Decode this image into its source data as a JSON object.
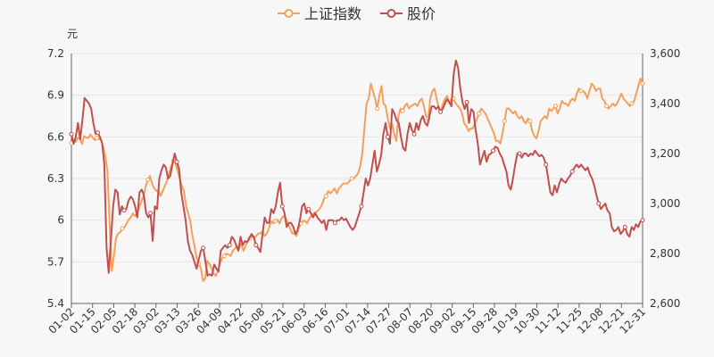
{
  "chart_data": {
    "type": "line",
    "title": "",
    "left_axis": {
      "unit": "元",
      "min": 5.4,
      "max": 7.2,
      "ticks": [
        "5.4",
        "5.7",
        "6",
        "6.3",
        "6.6",
        "6.9",
        "7.2"
      ],
      "tick_values": [
        5.4,
        5.7,
        6.0,
        6.3,
        6.6,
        6.9,
        7.2
      ]
    },
    "right_axis": {
      "min": 2600,
      "max": 3600,
      "ticks": [
        "2,600",
        "2,800",
        "3,000",
        "3,200",
        "3,400",
        "3,600"
      ],
      "tick_values": [
        2600,
        2800,
        3000,
        3200,
        3400,
        3600
      ]
    },
    "x_tick_labels": [
      "01-02",
      "01-15",
      "02-05",
      "02-18",
      "03-02",
      "03-13",
      "03-26",
      "04-09",
      "04-22",
      "05-08",
      "05-21",
      "06-03",
      "06-16",
      "07-01",
      "07-14",
      "07-27",
      "08-07",
      "08-20",
      "09-02",
      "09-15",
      "09-28",
      "10-19",
      "10-30",
      "11-12",
      "11-25",
      "12-08",
      "12-21",
      "12-31"
    ],
    "grid": true,
    "legend_position": "top-center",
    "colors": {
      "index": "#f3a15a",
      "price": "#c0504d",
      "axis": "#666666",
      "grid": "#e6e6e6"
    },
    "series": [
      {
        "name": "上证指数",
        "axis": "right",
        "values": [
          3242,
          3255,
          3247,
          3262,
          3262,
          3238,
          3270,
          3264,
          3262,
          3276,
          3264,
          3254,
          3262,
          3258,
          3255,
          3225,
          3188,
          3130,
          2920,
          2730,
          2790,
          2862,
          2880,
          2885,
          2900,
          2905,
          2920,
          2935,
          2945,
          2960,
          2950,
          2960,
          2985,
          3010,
          3030,
          3070,
          3095,
          3110,
          3080,
          3060,
          3050,
          3050,
          3030,
          3050,
          3070,
          3090,
          3120,
          3150,
          3170,
          3160,
          3130,
          3100,
          3070,
          3050,
          2990,
          2960,
          2930,
          2870,
          2830,
          2780,
          2760,
          2740,
          2690,
          2700,
          2770,
          2760,
          2740,
          2720,
          2710,
          2730,
          2760,
          2780,
          2790,
          2800,
          2795,
          2790,
          2810,
          2820,
          2830,
          2820,
          2840,
          2810,
          2830,
          2850,
          2860,
          2870,
          2860,
          2870,
          2880,
          2880,
          2890,
          2870,
          2880,
          2900,
          2930,
          2920,
          2930,
          2935,
          2920,
          2940,
          2950,
          2940,
          2920,
          2900,
          2880,
          2880,
          2870,
          2900,
          2920,
          2930,
          2930,
          2920,
          2940,
          2950,
          2960,
          2965,
          2970,
          2980,
          2995,
          3020,
          3030,
          3050,
          3040,
          3050,
          3060,
          3040,
          3060,
          3070,
          3080,
          3080,
          3080,
          3090,
          3100,
          3100,
          3110,
          3120,
          3150,
          3200,
          3300,
          3400,
          3420,
          3480,
          3450,
          3420,
          3380,
          3430,
          3470,
          3400,
          3390,
          3340,
          3300,
          3320,
          3280,
          3250,
          3350,
          3380,
          3370,
          3390,
          3400,
          3380,
          3390,
          3395,
          3400,
          3390,
          3410,
          3420,
          3390,
          3350,
          3340,
          3420,
          3450,
          3460,
          3420,
          3380,
          3370,
          3400,
          3420,
          3430,
          3400,
          3420,
          3420,
          3400,
          3390,
          3380,
          3360,
          3320,
          3310,
          3290,
          3300,
          3300,
          3320,
          3340,
          3360,
          3380,
          3370,
          3360,
          3340,
          3320,
          3300,
          3280,
          3250,
          3250,
          3240,
          3280,
          3330,
          3380,
          3380,
          3370,
          3360,
          3370,
          3350,
          3340,
          3350,
          3330,
          3320,
          3340,
          3330,
          3290,
          3270,
          3260,
          3290,
          3330,
          3340,
          3350,
          3340,
          3380,
          3370,
          3380,
          3390,
          3360,
          3380,
          3410,
          3400,
          3400,
          3390,
          3410,
          3420,
          3410,
          3440,
          3460,
          3450,
          3450,
          3440,
          3420,
          3450,
          3480,
          3470,
          3450,
          3460,
          3460,
          3420,
          3410,
          3390,
          3380,
          3390,
          3400,
          3390,
          3400,
          3420,
          3440,
          3420,
          3410,
          3400,
          3390,
          3400,
          3410,
          3440,
          3470,
          3500,
          3480
        ]
      },
      {
        "name": "股价",
        "axis": "left",
        "values": [
          6.62,
          6.55,
          6.6,
          6.7,
          6.58,
          6.72,
          6.88,
          6.86,
          6.84,
          6.8,
          6.7,
          6.62,
          6.63,
          6.6,
          6.55,
          6.4,
          5.8,
          5.62,
          5.86,
          6.1,
          6.22,
          6.2,
          6.04,
          6.1,
          6.07,
          6.08,
          6.14,
          6.17,
          6.15,
          6.1,
          6.02,
          6.2,
          6.22,
          6.18,
          6.05,
          6.02,
          6.05,
          5.85,
          6.1,
          6.08,
          6.3,
          6.36,
          6.4,
          6.38,
          6.3,
          6.32,
          6.4,
          6.48,
          6.42,
          6.37,
          6.2,
          6.1,
          6.0,
          5.85,
          5.78,
          5.75,
          5.7,
          5.65,
          5.72,
          5.78,
          5.8,
          5.7,
          5.6,
          5.61,
          5.6,
          5.68,
          5.65,
          5.63,
          5.78,
          5.8,
          5.82,
          5.8,
          5.82,
          5.88,
          5.86,
          5.82,
          5.78,
          5.88,
          5.82,
          5.85,
          5.84,
          5.87,
          5.9,
          5.88,
          5.82,
          5.8,
          5.77,
          5.9,
          6.02,
          5.98,
          5.98,
          6.08,
          6.05,
          6.1,
          6.2,
          6.27,
          6.1,
          6.05,
          5.95,
          5.98,
          5.98,
          5.95,
          5.9,
          5.93,
          6.0,
          6.1,
          6.12,
          6.05,
          6.08,
          6.05,
          6.02,
          6.05,
          6.02,
          6.0,
          5.98,
          6.0,
          5.93,
          6.0,
          6.0,
          6.0,
          5.98,
          6.0,
          6.0,
          6.02,
          6.0,
          6.01,
          5.98,
          5.95,
          5.93,
          5.95,
          6.0,
          6.05,
          6.1,
          6.2,
          6.3,
          6.25,
          6.3,
          6.4,
          6.5,
          6.35,
          6.4,
          6.47,
          6.62,
          6.7,
          6.6,
          6.55,
          6.8,
          6.77,
          6.72,
          6.7,
          6.6,
          6.52,
          6.5,
          6.62,
          6.7,
          6.65,
          6.62,
          6.7,
          6.65,
          6.72,
          6.75,
          6.7,
          6.68,
          6.75,
          6.82,
          6.82,
          6.8,
          6.82,
          6.78,
          6.8,
          6.84,
          6.87,
          6.85,
          6.82,
          7.05,
          7.15,
          7.1,
          6.95,
          6.85,
          6.8,
          6.85,
          6.7,
          6.8,
          6.78,
          6.65,
          6.55,
          6.4,
          6.45,
          6.5,
          6.42,
          6.47,
          6.48,
          6.5,
          6.53,
          6.52,
          6.48,
          6.45,
          6.4,
          6.35,
          6.25,
          6.22,
          6.3,
          6.4,
          6.48,
          6.48,
          6.45,
          6.48,
          6.48,
          6.46,
          6.48,
          6.47,
          6.5,
          6.48,
          6.46,
          6.47,
          6.45,
          6.4,
          6.3,
          6.2,
          6.18,
          6.25,
          6.2,
          6.26,
          6.3,
          6.28,
          6.27,
          6.3,
          6.32,
          6.35,
          6.38,
          6.4,
          6.38,
          6.4,
          6.38,
          6.36,
          6.38,
          6.33,
          6.3,
          6.25,
          6.18,
          6.12,
          6.08,
          6.1,
          6.12,
          6.07,
          6.05,
          5.95,
          5.92,
          5.93,
          5.95,
          5.9,
          5.92,
          5.95,
          5.9,
          5.88,
          5.95,
          5.93,
          5.97,
          5.95,
          5.99,
          6.0
        ]
      }
    ]
  }
}
